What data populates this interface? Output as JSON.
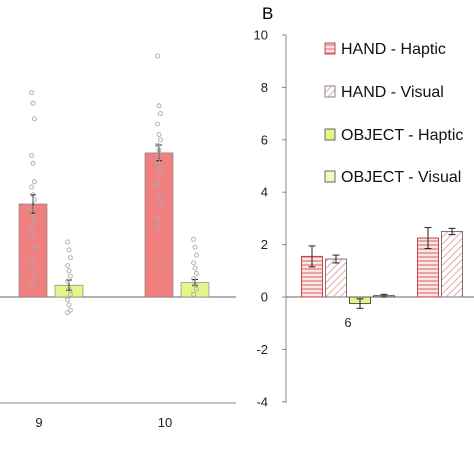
{
  "chart_data": [
    {
      "type": "bar",
      "panel": "",
      "categories": [
        "9",
        "10"
      ],
      "ylim": [
        -4,
        10
      ],
      "series": [
        {
          "values": [
            3.55,
            5.5
          ],
          "errors": [
            0.35,
            0.3
          ],
          "color": "#f08080"
        },
        {
          "values": [
            0.45,
            0.55
          ],
          "errors": [
            0.2,
            0.12
          ],
          "color": "#e6f58a"
        }
      ],
      "points": [
        [
          [
            7.8,
            7.4,
            6.8,
            5.4,
            5.1,
            4.4,
            4.2,
            3.9,
            3.7,
            3.4,
            3.2,
            2.9,
            2.6,
            2.3,
            1.9,
            1.5,
            1.2,
            0.8,
            0.5
          ],
          [
            2.1,
            1.8,
            1.5,
            1.2,
            1.0,
            0.8,
            0.6,
            0.3,
            0.1,
            -0.1,
            -0.3,
            -0.5,
            -0.6
          ]
        ],
        [
          [
            9.2,
            7.3,
            7.0,
            6.6,
            6.2,
            6.0,
            5.8,
            5.6,
            5.4,
            5.2,
            4.9,
            4.6,
            4.3,
            3.9,
            3.5,
            3.0,
            2.7,
            1.3
          ],
          [
            2.2,
            1.9,
            1.6,
            1.3,
            1.1,
            0.9,
            0.7,
            0.5,
            0.3,
            0.1
          ]
        ]
      ]
    },
    {
      "type": "bar",
      "panel": "B",
      "categories": [
        "6",
        ""
      ],
      "ylim": [
        -4,
        10
      ],
      "yticks": [
        "10",
        "8",
        "6",
        "4",
        "2",
        "0",
        "-2",
        "-4"
      ],
      "series": [
        {
          "name": "HAND - Haptic",
          "values": [
            1.55,
            2.25
          ],
          "errors": [
            0.4,
            0.4
          ],
          "color": "#f4b4b4",
          "pattern": "horizontal"
        },
        {
          "name": "HAND - Visual",
          "values": [
            1.45,
            2.5
          ],
          "errors": [
            0.15,
            0.12
          ],
          "color": "#ffffff",
          "pattern": "diagonal"
        },
        {
          "name": "OBJECT - Haptic",
          "values": [
            -0.25,
            null
          ],
          "errors": [
            0.18,
            null
          ],
          "color": "#e6f58a",
          "pattern": "none"
        },
        {
          "name": "OBJECT - Visual",
          "values": [
            0.05,
            null
          ],
          "errors": [
            0.05,
            null
          ],
          "color": "#f3fac7",
          "pattern": "none"
        }
      ]
    }
  ],
  "legend": [
    {
      "label": "HAND - Haptic",
      "icon": "red-horizontal-stripe-swatch"
    },
    {
      "label": "HAND - Visual",
      "icon": "red-diagonal-stripe-swatch"
    },
    {
      "label": "OBJECT - Haptic",
      "icon": "yellow-solid-swatch"
    },
    {
      "label": "OBJECT - Visual",
      "icon": "pale-yellow-solid-swatch"
    }
  ]
}
